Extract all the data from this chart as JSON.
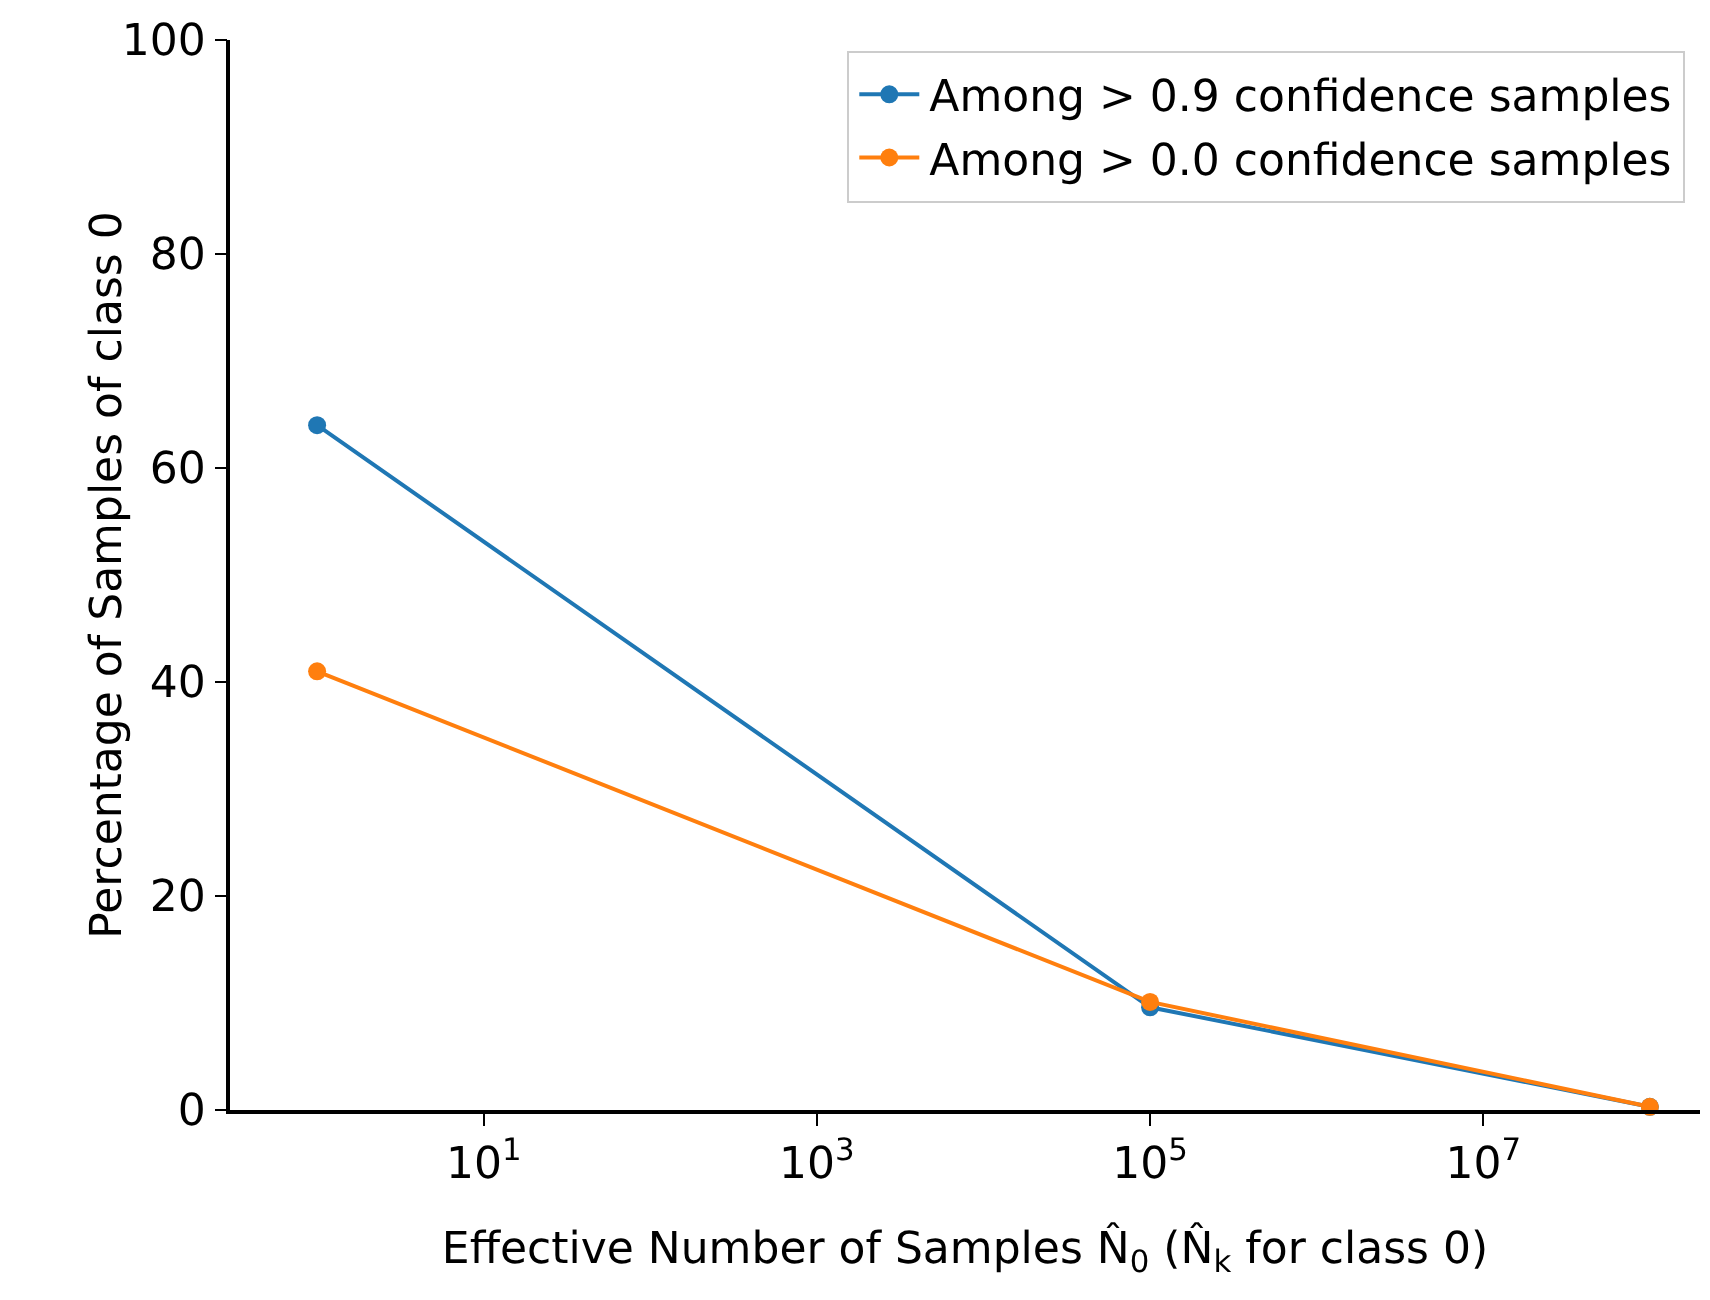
{
  "chart_data": {
    "type": "line",
    "xlabel": "Effective Number of Samples N̂$_{0}$ (N̂$_{k}$ for class 0)",
    "ylabel": "Percentage of Samples of class 0",
    "x": [
      1,
      100000,
      100000000
    ],
    "series": [
      {
        "name": "Among > 0.9 confidence samples",
        "color": "#1f77b4",
        "values": [
          64,
          9.6,
          0.3
        ]
      },
      {
        "name": "Among > 0.0 confidence samples",
        "color": "#ff7f0e",
        "values": [
          41,
          10.1,
          0.3
        ]
      }
    ],
    "log": "x",
    "xlim": [
      0.3,
      200000000
    ],
    "xticks": [
      {
        "value": 10,
        "label": "10$^{1}$"
      },
      {
        "value": 1000,
        "label": "10$^{3}$"
      },
      {
        "value": 100000,
        "label": "10$^{5}$"
      },
      {
        "value": 10000000,
        "label": "10$^{7}$"
      }
    ],
    "ylim": [
      0,
      100
    ],
    "yticks": [
      0,
      20,
      40,
      60,
      80,
      100
    ],
    "grid": false,
    "legend": "top right",
    "marker": "circle",
    "line_style": "solid"
  }
}
